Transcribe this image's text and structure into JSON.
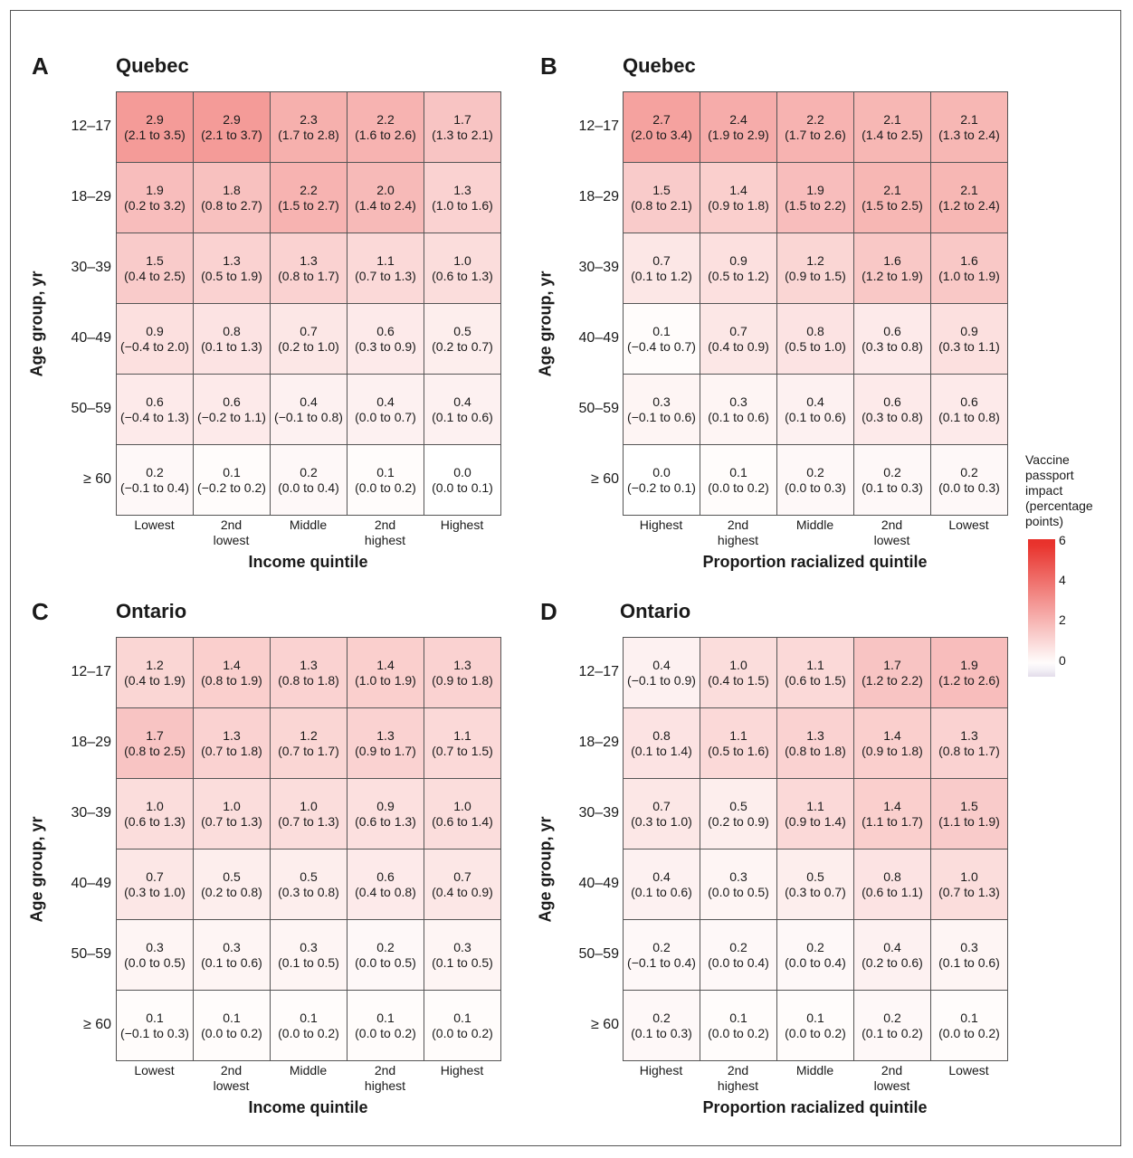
{
  "legend": {
    "title_lines": [
      "Vaccine",
      "passport",
      "impact",
      "(percentage",
      "points)"
    ],
    "ticks": [
      "6",
      "4",
      "2",
      "0"
    ],
    "range": [
      -0.6,
      6.2
    ],
    "colors": {
      "low": "#e3dcea",
      "mid": "#ffffff",
      "high": "#e8302a"
    }
  },
  "panels": [
    {
      "letter": "A",
      "title": "Quebec",
      "ylabel": "Age group, yr",
      "xlabel": "Income quintile",
      "rows": [
        "12–17",
        "18–29",
        "30–39",
        "40–49",
        "50–59",
        "≥ 60"
      ],
      "cols": [
        "Lowest",
        "2nd\nlowest",
        "Middle",
        "2nd\nhighest",
        "Highest"
      ],
      "cells": [
        [
          {
            "v": "2.9",
            "ci": "(2.1 to 3.5)"
          },
          {
            "v": "2.9",
            "ci": "(2.1 to 3.7)"
          },
          {
            "v": "2.3",
            "ci": "(1.7 to 2.8)"
          },
          {
            "v": "2.2",
            "ci": "(1.6 to 2.6)"
          },
          {
            "v": "1.7",
            "ci": "(1.3 to 2.1)"
          }
        ],
        [
          {
            "v": "1.9",
            "ci": "(0.2 to 3.2)"
          },
          {
            "v": "1.8",
            "ci": "(0.8 to 2.7)"
          },
          {
            "v": "2.2",
            "ci": "(1.5 to 2.7)"
          },
          {
            "v": "2.0",
            "ci": "(1.4 to 2.4)"
          },
          {
            "v": "1.3",
            "ci": "(1.0 to 1.6)"
          }
        ],
        [
          {
            "v": "1.5",
            "ci": "(0.4 to 2.5)"
          },
          {
            "v": "1.3",
            "ci": "(0.5 to 1.9)"
          },
          {
            "v": "1.3",
            "ci": "(0.8 to 1.7)"
          },
          {
            "v": "1.1",
            "ci": "(0.7 to 1.3)"
          },
          {
            "v": "1.0",
            "ci": "(0.6 to 1.3)"
          }
        ],
        [
          {
            "v": "0.9",
            "ci": "(−0.4 to 2.0)"
          },
          {
            "v": "0.8",
            "ci": "(0.1 to 1.3)"
          },
          {
            "v": "0.7",
            "ci": "(0.2 to 1.0)"
          },
          {
            "v": "0.6",
            "ci": "(0.3 to 0.9)"
          },
          {
            "v": "0.5",
            "ci": "(0.2 to 0.7)"
          }
        ],
        [
          {
            "v": "0.6",
            "ci": "(−0.4 to 1.3)"
          },
          {
            "v": "0.6",
            "ci": "(−0.2 to 1.1)"
          },
          {
            "v": "0.4",
            "ci": "(−0.1 to 0.8)"
          },
          {
            "v": "0.4",
            "ci": "(0.0 to 0.7)"
          },
          {
            "v": "0.4",
            "ci": "(0.1 to 0.6)"
          }
        ],
        [
          {
            "v": "0.2",
            "ci": "(−0.1 to 0.4)"
          },
          {
            "v": "0.1",
            "ci": "(−0.2 to 0.2)"
          },
          {
            "v": "0.2",
            "ci": "(0.0 to 0.4)"
          },
          {
            "v": "0.1",
            "ci": "(0.0 to 0.2)"
          },
          {
            "v": "0.0",
            "ci": "(0.0 to 0.1)"
          }
        ]
      ]
    },
    {
      "letter": "B",
      "title": "Quebec",
      "ylabel": "Age group, yr",
      "xlabel": "Proportion racialized quintile",
      "rows": [
        "12–17",
        "18–29",
        "30–39",
        "40–49",
        "50–59",
        "≥ 60"
      ],
      "cols": [
        "Highest",
        "2nd\nhighest",
        "Middle",
        "2nd\nlowest",
        "Lowest"
      ],
      "cells": [
        [
          {
            "v": "2.7",
            "ci": "(2.0 to 3.4)"
          },
          {
            "v": "2.4",
            "ci": "(1.9 to 2.9)"
          },
          {
            "v": "2.2",
            "ci": "(1.7 to 2.6)"
          },
          {
            "v": "2.1",
            "ci": "(1.4 to 2.5)"
          },
          {
            "v": "2.1",
            "ci": "(1.3 to 2.4)"
          }
        ],
        [
          {
            "v": "1.5",
            "ci": "(0.8 to 2.1)"
          },
          {
            "v": "1.4",
            "ci": "(0.9 to 1.8)"
          },
          {
            "v": "1.9",
            "ci": "(1.5 to 2.2)"
          },
          {
            "v": "2.1",
            "ci": "(1.5 to 2.5)"
          },
          {
            "v": "2.1",
            "ci": "(1.2 to 2.4)"
          }
        ],
        [
          {
            "v": "0.7",
            "ci": "(0.1 to 1.2)"
          },
          {
            "v": "0.9",
            "ci": "(0.5 to 1.2)"
          },
          {
            "v": "1.2",
            "ci": "(0.9 to 1.5)"
          },
          {
            "v": "1.6",
            "ci": "(1.2 to 1.9)"
          },
          {
            "v": "1.6",
            "ci": "(1.0 to 1.9)"
          }
        ],
        [
          {
            "v": "0.1",
            "ci": "(−0.4 to 0.7)"
          },
          {
            "v": "0.7",
            "ci": "(0.4 to 0.9)"
          },
          {
            "v": "0.8",
            "ci": "(0.5 to 1.0)"
          },
          {
            "v": "0.6",
            "ci": "(0.3 to 0.8)"
          },
          {
            "v": "0.9",
            "ci": "(0.3 to 1.1)"
          }
        ],
        [
          {
            "v": "0.3",
            "ci": "(−0.1 to 0.6)"
          },
          {
            "v": "0.3",
            "ci": "(0.1 to 0.6)"
          },
          {
            "v": "0.4",
            "ci": "(0.1 to 0.6)"
          },
          {
            "v": "0.6",
            "ci": "(0.3 to 0.8)"
          },
          {
            "v": "0.6",
            "ci": "(0.1 to 0.8)"
          }
        ],
        [
          {
            "v": "0.0",
            "ci": "(−0.2 to 0.1)"
          },
          {
            "v": "0.1",
            "ci": "(0.0 to 0.2)"
          },
          {
            "v": "0.2",
            "ci": "(0.0 to 0.3)"
          },
          {
            "v": "0.2",
            "ci": "(0.1 to 0.3)"
          },
          {
            "v": "0.2",
            "ci": "(0.0 to 0.3)"
          }
        ]
      ]
    },
    {
      "letter": "C",
      "title": "Ontario",
      "ylabel": "Age group, yr",
      "xlabel": "Income quintile",
      "rows": [
        "12–17",
        "18–29",
        "30–39",
        "40–49",
        "50–59",
        "≥ 60"
      ],
      "cols": [
        "Lowest",
        "2nd\nlowest",
        "Middle",
        "2nd\nhighest",
        "Highest"
      ],
      "cells": [
        [
          {
            "v": "1.2",
            "ci": "(0.4 to 1.9)"
          },
          {
            "v": "1.4",
            "ci": "(0.8 to 1.9)"
          },
          {
            "v": "1.3",
            "ci": "(0.8 to 1.8)"
          },
          {
            "v": "1.4",
            "ci": "(1.0 to 1.9)"
          },
          {
            "v": "1.3",
            "ci": "(0.9 to 1.8)"
          }
        ],
        [
          {
            "v": "1.7",
            "ci": "(0.8 to 2.5)"
          },
          {
            "v": "1.3",
            "ci": "(0.7 to 1.8)"
          },
          {
            "v": "1.2",
            "ci": "(0.7 to 1.7)"
          },
          {
            "v": "1.3",
            "ci": "(0.9 to 1.7)"
          },
          {
            "v": "1.1",
            "ci": "(0.7 to 1.5)"
          }
        ],
        [
          {
            "v": "1.0",
            "ci": "(0.6 to 1.3)"
          },
          {
            "v": "1.0",
            "ci": "(0.7 to 1.3)"
          },
          {
            "v": "1.0",
            "ci": "(0.7 to 1.3)"
          },
          {
            "v": "0.9",
            "ci": "(0.6 to 1.3)"
          },
          {
            "v": "1.0",
            "ci": "(0.6 to 1.4)"
          }
        ],
        [
          {
            "v": "0.7",
            "ci": "(0.3 to 1.0)"
          },
          {
            "v": "0.5",
            "ci": "(0.2 to 0.8)"
          },
          {
            "v": "0.5",
            "ci": "(0.3 to 0.8)"
          },
          {
            "v": "0.6",
            "ci": "(0.4 to 0.8)"
          },
          {
            "v": "0.7",
            "ci": "(0.4 to 0.9)"
          }
        ],
        [
          {
            "v": "0.3",
            "ci": "(0.0 to 0.5)"
          },
          {
            "v": "0.3",
            "ci": "(0.1 to 0.6)"
          },
          {
            "v": "0.3",
            "ci": "(0.1 to 0.5)"
          },
          {
            "v": "0.2",
            "ci": "(0.0 to 0.5)"
          },
          {
            "v": "0.3",
            "ci": "(0.1 to 0.5)"
          }
        ],
        [
          {
            "v": "0.1",
            "ci": "(−0.1 to 0.3)"
          },
          {
            "v": "0.1",
            "ci": "(0.0 to 0.2)"
          },
          {
            "v": "0.1",
            "ci": "(0.0 to 0.2)"
          },
          {
            "v": "0.1",
            "ci": "(0.0 to 0.2)"
          },
          {
            "v": "0.1",
            "ci": "(0.0 to 0.2)"
          }
        ]
      ]
    },
    {
      "letter": "D",
      "title": "Ontario",
      "ylabel": "Age group, yr",
      "xlabel": "Proportion racialized quintile",
      "rows": [
        "12–17",
        "18–29",
        "30–39",
        "40–49",
        "50–59",
        "≥ 60"
      ],
      "cols": [
        "Highest",
        "2nd\nhighest",
        "Middle",
        "2nd\nlowest",
        "Lowest"
      ],
      "cells": [
        [
          {
            "v": "0.4",
            "ci": "(−0.1 to 0.9)"
          },
          {
            "v": "1.0",
            "ci": "(0.4 to 1.5)"
          },
          {
            "v": "1.1",
            "ci": "(0.6 to 1.5)"
          },
          {
            "v": "1.7",
            "ci": "(1.2 to 2.2)"
          },
          {
            "v": "1.9",
            "ci": "(1.2 to 2.6)"
          }
        ],
        [
          {
            "v": "0.8",
            "ci": "(0.1 to 1.4)"
          },
          {
            "v": "1.1",
            "ci": "(0.5 to 1.6)"
          },
          {
            "v": "1.3",
            "ci": "(0.8 to 1.8)"
          },
          {
            "v": "1.4",
            "ci": "(0.9 to 1.8)"
          },
          {
            "v": "1.3",
            "ci": "(0.8 to 1.7)"
          }
        ],
        [
          {
            "v": "0.7",
            "ci": "(0.3 to 1.0)"
          },
          {
            "v": "0.5",
            "ci": "(0.2 to 0.9)"
          },
          {
            "v": "1.1",
            "ci": "(0.9 to 1.4)"
          },
          {
            "v": "1.4",
            "ci": "(1.1 to 1.7)"
          },
          {
            "v": "1.5",
            "ci": "(1.1 to 1.9)"
          }
        ],
        [
          {
            "v": "0.4",
            "ci": "(0.1 to 0.6)"
          },
          {
            "v": "0.3",
            "ci": "(0.0 to 0.5)"
          },
          {
            "v": "0.5",
            "ci": "(0.3 to 0.7)"
          },
          {
            "v": "0.8",
            "ci": "(0.6 to 1.1)"
          },
          {
            "v": "1.0",
            "ci": "(0.7 to 1.3)"
          }
        ],
        [
          {
            "v": "0.2",
            "ci": "(−0.1 to 0.4)"
          },
          {
            "v": "0.2",
            "ci": "(0.0 to 0.4)"
          },
          {
            "v": "0.2",
            "ci": "(0.0 to 0.4)"
          },
          {
            "v": "0.4",
            "ci": "(0.2 to 0.6)"
          },
          {
            "v": "0.3",
            "ci": "(0.1 to 0.6)"
          }
        ],
        [
          {
            "v": "0.2",
            "ci": "(0.1 to 0.3)"
          },
          {
            "v": "0.1",
            "ci": "(0.0 to 0.2)"
          },
          {
            "v": "0.1",
            "ci": "(0.0 to 0.2)"
          },
          {
            "v": "0.2",
            "ci": "(0.1 to 0.2)"
          },
          {
            "v": "0.1",
            "ci": "(0.0 to 0.2)"
          }
        ]
      ]
    }
  ],
  "chart_data": [
    {
      "type": "heatmap",
      "title": "Quebec",
      "xlabel": "Income quintile",
      "ylabel": "Age group, yr",
      "x": [
        "Lowest",
        "2nd lowest",
        "Middle",
        "2nd highest",
        "Highest"
      ],
      "y": [
        "12–17",
        "18–29",
        "30–39",
        "40–49",
        "50–59",
        "≥ 60"
      ],
      "values": [
        [
          2.9,
          2.9,
          2.3,
          2.2,
          1.7
        ],
        [
          1.9,
          1.8,
          2.2,
          2.0,
          1.3
        ],
        [
          1.5,
          1.3,
          1.3,
          1.1,
          1.0
        ],
        [
          0.9,
          0.8,
          0.7,
          0.6,
          0.5
        ],
        [
          0.6,
          0.6,
          0.4,
          0.4,
          0.4
        ],
        [
          0.2,
          0.1,
          0.2,
          0.1,
          0.0
        ]
      ]
    },
    {
      "type": "heatmap",
      "title": "Quebec",
      "xlabel": "Proportion racialized quintile",
      "ylabel": "Age group, yr",
      "x": [
        "Highest",
        "2nd highest",
        "Middle",
        "2nd lowest",
        "Lowest"
      ],
      "y": [
        "12–17",
        "18–29",
        "30–39",
        "40–49",
        "50–59",
        "≥ 60"
      ],
      "values": [
        [
          2.7,
          2.4,
          2.2,
          2.1,
          2.1
        ],
        [
          1.5,
          1.4,
          1.9,
          2.1,
          2.1
        ],
        [
          0.7,
          0.9,
          1.2,
          1.6,
          1.6
        ],
        [
          0.1,
          0.7,
          0.8,
          0.6,
          0.9
        ],
        [
          0.3,
          0.3,
          0.4,
          0.6,
          0.6
        ],
        [
          0.0,
          0.1,
          0.2,
          0.2,
          0.2
        ]
      ]
    },
    {
      "type": "heatmap",
      "title": "Ontario",
      "xlabel": "Income quintile",
      "ylabel": "Age group, yr",
      "x": [
        "Lowest",
        "2nd lowest",
        "Middle",
        "2nd highest",
        "Highest"
      ],
      "y": [
        "12–17",
        "18–29",
        "30–39",
        "40–49",
        "50–59",
        "≥ 60"
      ],
      "values": [
        [
          1.2,
          1.4,
          1.3,
          1.4,
          1.3
        ],
        [
          1.7,
          1.3,
          1.2,
          1.3,
          1.1
        ],
        [
          1.0,
          1.0,
          1.0,
          0.9,
          1.0
        ],
        [
          0.7,
          0.5,
          0.5,
          0.6,
          0.7
        ],
        [
          0.3,
          0.3,
          0.3,
          0.2,
          0.3
        ],
        [
          0.1,
          0.1,
          0.1,
          0.1,
          0.1
        ]
      ]
    },
    {
      "type": "heatmap",
      "title": "Ontario",
      "xlabel": "Proportion racialized quintile",
      "ylabel": "Age group, yr",
      "x": [
        "Highest",
        "2nd highest",
        "Middle",
        "2nd lowest",
        "Lowest"
      ],
      "y": [
        "12–17",
        "18–29",
        "30–39",
        "40–49",
        "50–59",
        "≥ 60"
      ],
      "values": [
        [
          0.4,
          1.0,
          1.1,
          1.7,
          1.9
        ],
        [
          0.8,
          1.1,
          1.3,
          1.4,
          1.3
        ],
        [
          0.7,
          0.5,
          1.1,
          1.4,
          1.5
        ],
        [
          0.4,
          0.3,
          0.5,
          0.8,
          1.0
        ],
        [
          0.2,
          0.2,
          0.2,
          0.4,
          0.3
        ],
        [
          0.2,
          0.1,
          0.1,
          0.2,
          0.1
        ]
      ]
    }
  ]
}
